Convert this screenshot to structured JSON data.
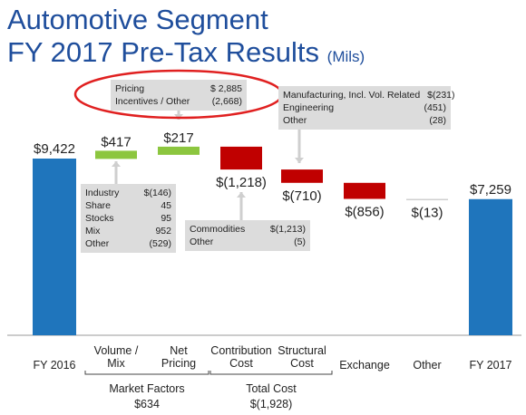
{
  "title": {
    "line1": "Automotive Segment",
    "line2": "FY 2017 Pre-Tax Results",
    "unit": "(Mils)"
  },
  "colors": {
    "total": "#1f75bc",
    "positive": "#8cc63f",
    "negative": "#c00000",
    "other": "#cfcfcf",
    "accent": "#1f4e9c",
    "highlight": "#e02020"
  },
  "chart_data": {
    "type": "bar",
    "subtype": "waterfall",
    "categories": [
      "FY 2016",
      "Volume /\nMix",
      "Net\nPricing",
      "Contribution\nCost",
      "Structural\nCost",
      "Exchange",
      "Other",
      "FY 2017"
    ],
    "values": [
      9422,
      417,
      217,
      -1218,
      -710,
      -856,
      -13,
      7259
    ],
    "value_labels": [
      "$9,422",
      "$417",
      "$217",
      "$(1,218)",
      "$(710)",
      "$(856)",
      "$(13)",
      "$7,259"
    ],
    "kinds": [
      "total",
      "positive",
      "positive",
      "negative",
      "negative",
      "negative",
      "other",
      "total"
    ],
    "groups": [
      {
        "label": "Market Factors",
        "value": "$634",
        "from": 1,
        "to": 2
      },
      {
        "label": "Total Cost",
        "value": "$(1,928)",
        "from": 3,
        "to": 4
      }
    ],
    "grid": false,
    "legend": "none"
  },
  "callouts": {
    "pricing": [
      {
        "label": "Pricing",
        "value": "$ 2,885"
      },
      {
        "label": "Incentives / Other",
        "value": "(2,668)"
      }
    ],
    "market": [
      {
        "label": "Industry",
        "value": "$(146)"
      },
      {
        "label": "Share",
        "value": "45"
      },
      {
        "label": "Stocks",
        "value": "95"
      },
      {
        "label": "Mix",
        "value": "952"
      },
      {
        "label": "Other",
        "value": "(529)"
      }
    ],
    "commodities": [
      {
        "label": "Commodities",
        "value": "$(1,213)"
      },
      {
        "label": "Other",
        "value": "(5)"
      }
    ],
    "structural": [
      {
        "label": "Manufacturing, Incl. Vol. Related",
        "value": "$(231)"
      },
      {
        "label": "Engineering",
        "value": "(451)"
      },
      {
        "label": "Other",
        "value": "(28)"
      }
    ]
  }
}
